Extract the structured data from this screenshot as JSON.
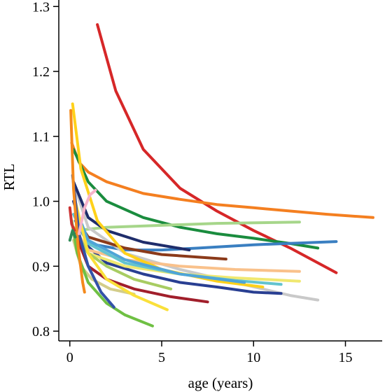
{
  "chart_data": {
    "type": "line",
    "title": "",
    "xlabel": "age (years)",
    "ylabel": "RTL",
    "xlim": [
      -0.6,
      17
    ],
    "ylim": [
      0.785,
      1.31
    ],
    "xticks": [
      0,
      5,
      10,
      15
    ],
    "yticks": [
      0.8,
      0.9,
      1.0,
      1.1,
      1.2,
      1.3
    ],
    "xtick_labels": [
      "0",
      "5",
      "10",
      "15"
    ],
    "ytick_labels": [
      "0.8",
      "0.9",
      "1.0",
      "1.1",
      "1.2",
      "1.3"
    ],
    "grid": false,
    "legend": "none",
    "series": [
      {
        "color": "#d62728",
        "x": [
          1.5,
          2.5,
          4,
          6,
          8,
          10,
          12,
          14.5
        ],
        "y": [
          1.272,
          1.17,
          1.08,
          1.02,
          0.985,
          0.955,
          0.928,
          0.89
        ]
      },
      {
        "color": "#f47f20",
        "x": [
          0.1,
          0.5,
          1,
          2,
          4,
          6,
          8,
          10,
          12,
          14,
          16.5
        ],
        "y": [
          1.09,
          1.06,
          1.045,
          1.03,
          1.012,
          1.003,
          0.995,
          0.99,
          0.985,
          0.98,
          0.975
        ]
      },
      {
        "color": "#1a8c3e",
        "x": [
          0.2,
          1,
          2,
          4,
          6,
          8,
          10,
          12,
          13.5
        ],
        "y": [
          1.08,
          1.03,
          1.0,
          0.975,
          0.96,
          0.95,
          0.943,
          0.935,
          0.928
        ]
      },
      {
        "color": "#a6d68a",
        "x": [
          0.3,
          2,
          5,
          8,
          12.5
        ],
        "y": [
          0.955,
          0.96,
          0.963,
          0.966,
          0.968
        ]
      },
      {
        "color": "#3a7fc1",
        "x": [
          0.3,
          1,
          3,
          5,
          7,
          10,
          14.5
        ],
        "y": [
          0.97,
          0.935,
          0.925,
          0.925,
          0.928,
          0.933,
          0.938
        ]
      },
      {
        "color": "#c9c9c9",
        "x": [
          0.3,
          1,
          3,
          6,
          9,
          12,
          13.5
        ],
        "y": [
          1.02,
          0.96,
          0.92,
          0.895,
          0.875,
          0.855,
          0.848
        ]
      },
      {
        "color": "#293f92",
        "x": [
          0.2,
          1,
          2,
          4,
          6,
          8,
          10,
          11.5
        ],
        "y": [
          1.0,
          0.93,
          0.905,
          0.888,
          0.875,
          0.868,
          0.86,
          0.858
        ]
      },
      {
        "color": "#1f2d6b",
        "x": [
          0.2,
          1,
          2,
          4,
          6.5
        ],
        "y": [
          1.03,
          0.975,
          0.955,
          0.937,
          0.925
        ]
      },
      {
        "color": "#8b3a1a",
        "x": [
          0.3,
          1,
          3,
          5,
          8.5
        ],
        "y": [
          0.975,
          0.945,
          0.928,
          0.918,
          0.911
        ]
      },
      {
        "color": "#f9c18b",
        "x": [
          0.2,
          1,
          3,
          6,
          9,
          12.5
        ],
        "y": [
          0.96,
          0.925,
          0.91,
          0.9,
          0.895,
          0.892
        ]
      },
      {
        "color": "#f0e870",
        "x": [
          0.3,
          1,
          3,
          6,
          9,
          12.5
        ],
        "y": [
          0.95,
          0.92,
          0.9,
          0.888,
          0.882,
          0.877
        ]
      },
      {
        "color": "#63c3cf",
        "x": [
          0.2,
          1,
          3,
          6,
          9,
          11.5
        ],
        "y": [
          0.98,
          0.935,
          0.905,
          0.888,
          0.878,
          0.872
        ]
      },
      {
        "color": "#ffd11a",
        "x": [
          0.15,
          0.6,
          1.5,
          3,
          5,
          8,
          10.5
        ],
        "y": [
          1.15,
          1.05,
          0.97,
          0.92,
          0.895,
          0.877,
          0.868
        ]
      },
      {
        "color": "#4fa5d8",
        "x": [
          0.3,
          1,
          3,
          6,
          9.5
        ],
        "y": [
          0.99,
          0.94,
          0.91,
          0.888,
          0.875
        ]
      },
      {
        "color": "#a8cc62",
        "x": [
          0.2,
          1,
          2,
          3.5,
          5.5
        ],
        "y": [
          0.96,
          0.92,
          0.9,
          0.88,
          0.865
        ]
      },
      {
        "color": "#d3cd8a",
        "x": [
          0.2,
          0.6,
          1.2,
          2.2,
          3.5
        ],
        "y": [
          0.94,
          0.9,
          0.88,
          0.865,
          0.857
        ]
      },
      {
        "color": "#a11f2b",
        "x": [
          0.3,
          1,
          2,
          3.5,
          5.5,
          7.5
        ],
        "y": [
          0.95,
          0.9,
          0.88,
          0.865,
          0.853,
          0.845
        ]
      },
      {
        "color": "#fae03a",
        "x": [
          0.3,
          1,
          2,
          3.5,
          5.3
        ],
        "y": [
          1.0,
          0.92,
          0.88,
          0.855,
          0.833
        ]
      },
      {
        "color": "#6fc043",
        "x": [
          0.1,
          0.4,
          1,
          2,
          3,
          4.5
        ],
        "y": [
          0.97,
          0.92,
          0.875,
          0.843,
          0.825,
          0.808
        ]
      },
      {
        "color": "#3352a8",
        "x": [
          0.15,
          0.5,
          1,
          1.7,
          2.4
        ],
        "y": [
          1.04,
          0.95,
          0.9,
          0.86,
          0.837
        ]
      },
      {
        "color": "#f48a1c",
        "x": [
          0.05,
          0.2,
          0.45,
          0.7,
          0.8
        ],
        "y": [
          1.14,
          1.02,
          0.93,
          0.875,
          0.86
        ]
      },
      {
        "color": "#f7b3c9",
        "x": [
          0.5,
          0.8,
          1.1,
          1.4
        ],
        "y": [
          0.95,
          0.99,
          1.01,
          1.017
        ]
      },
      {
        "color": "#cc3333",
        "x": [
          0,
          0.1,
          0.25
        ],
        "y": [
          0.99,
          0.965,
          0.955
        ]
      },
      {
        "color": "#2e8b57",
        "x": [
          0,
          0.15,
          0.3
        ],
        "y": [
          0.94,
          0.955,
          0.945
        ]
      }
    ]
  }
}
